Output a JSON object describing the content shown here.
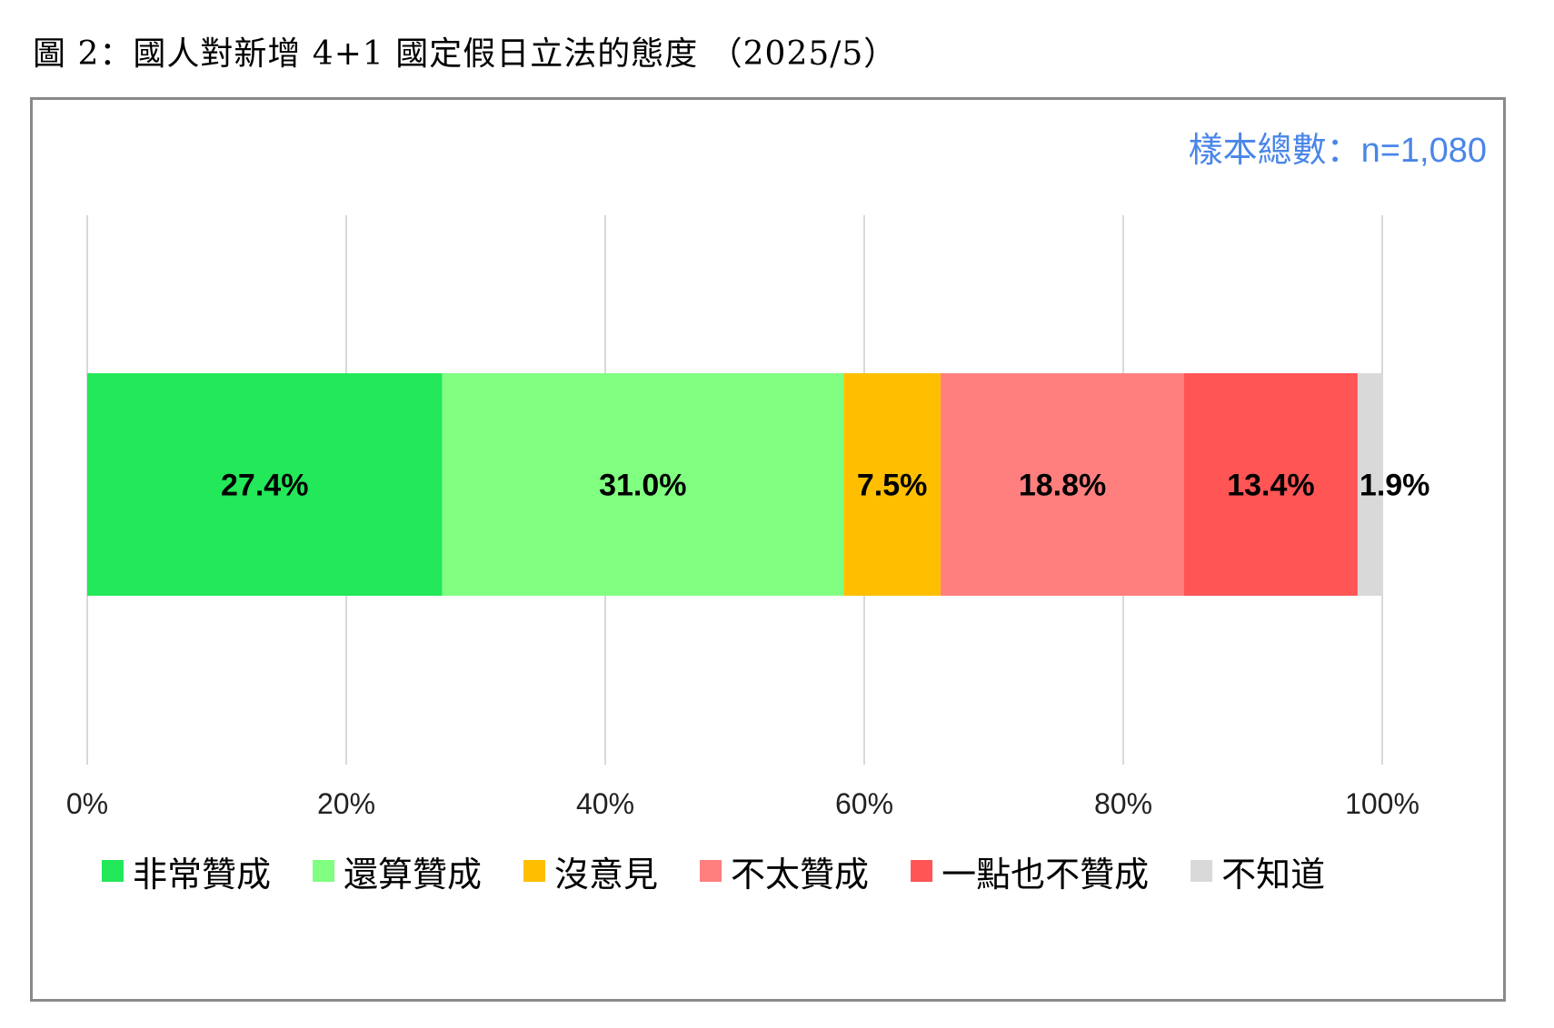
{
  "title": "圖 2：國人對新增 4+1 國定假日立法的態度 （2025/5）",
  "sample_note": "樣本總數：n=1,080",
  "colors": {
    "very_agree": "#22E85A",
    "somewhat_agree": "#80FF80",
    "no_opinion": "#FFBF00",
    "somewhat_disagree": "#FF7F7F",
    "strongly_disagree": "#FF5555",
    "dont_know": "#D9D9D9",
    "note_blue": "#4A86E8",
    "grid": "#D9D9D9"
  },
  "chart_data": {
    "type": "bar",
    "orientation": "horizontal",
    "stacked": true,
    "xlim": [
      0,
      100
    ],
    "ticks": [
      "0%",
      "20%",
      "40%",
      "60%",
      "80%",
      "100%"
    ],
    "grid": true,
    "legend_position": "bottom",
    "categories": [
      ""
    ],
    "series": [
      {
        "name": "非常贊成",
        "values": [
          27.4
        ],
        "label": "27.4%",
        "color": "#22E85A"
      },
      {
        "name": "還算贊成",
        "values": [
          31.0
        ],
        "label": "31.0%",
        "color": "#80FF80"
      },
      {
        "name": "沒意見",
        "values": [
          7.5
        ],
        "label": "7.5%",
        "color": "#FFBF00"
      },
      {
        "name": "不太贊成",
        "values": [
          18.8
        ],
        "label": "18.8%",
        "color": "#FF7F7F"
      },
      {
        "name": "一點也不贊成",
        "values": [
          13.4
        ],
        "label": "13.4%",
        "color": "#FF5555"
      },
      {
        "name": "不知道",
        "values": [
          1.9
        ],
        "label": "1.9%",
        "color": "#D9D9D9"
      }
    ]
  }
}
